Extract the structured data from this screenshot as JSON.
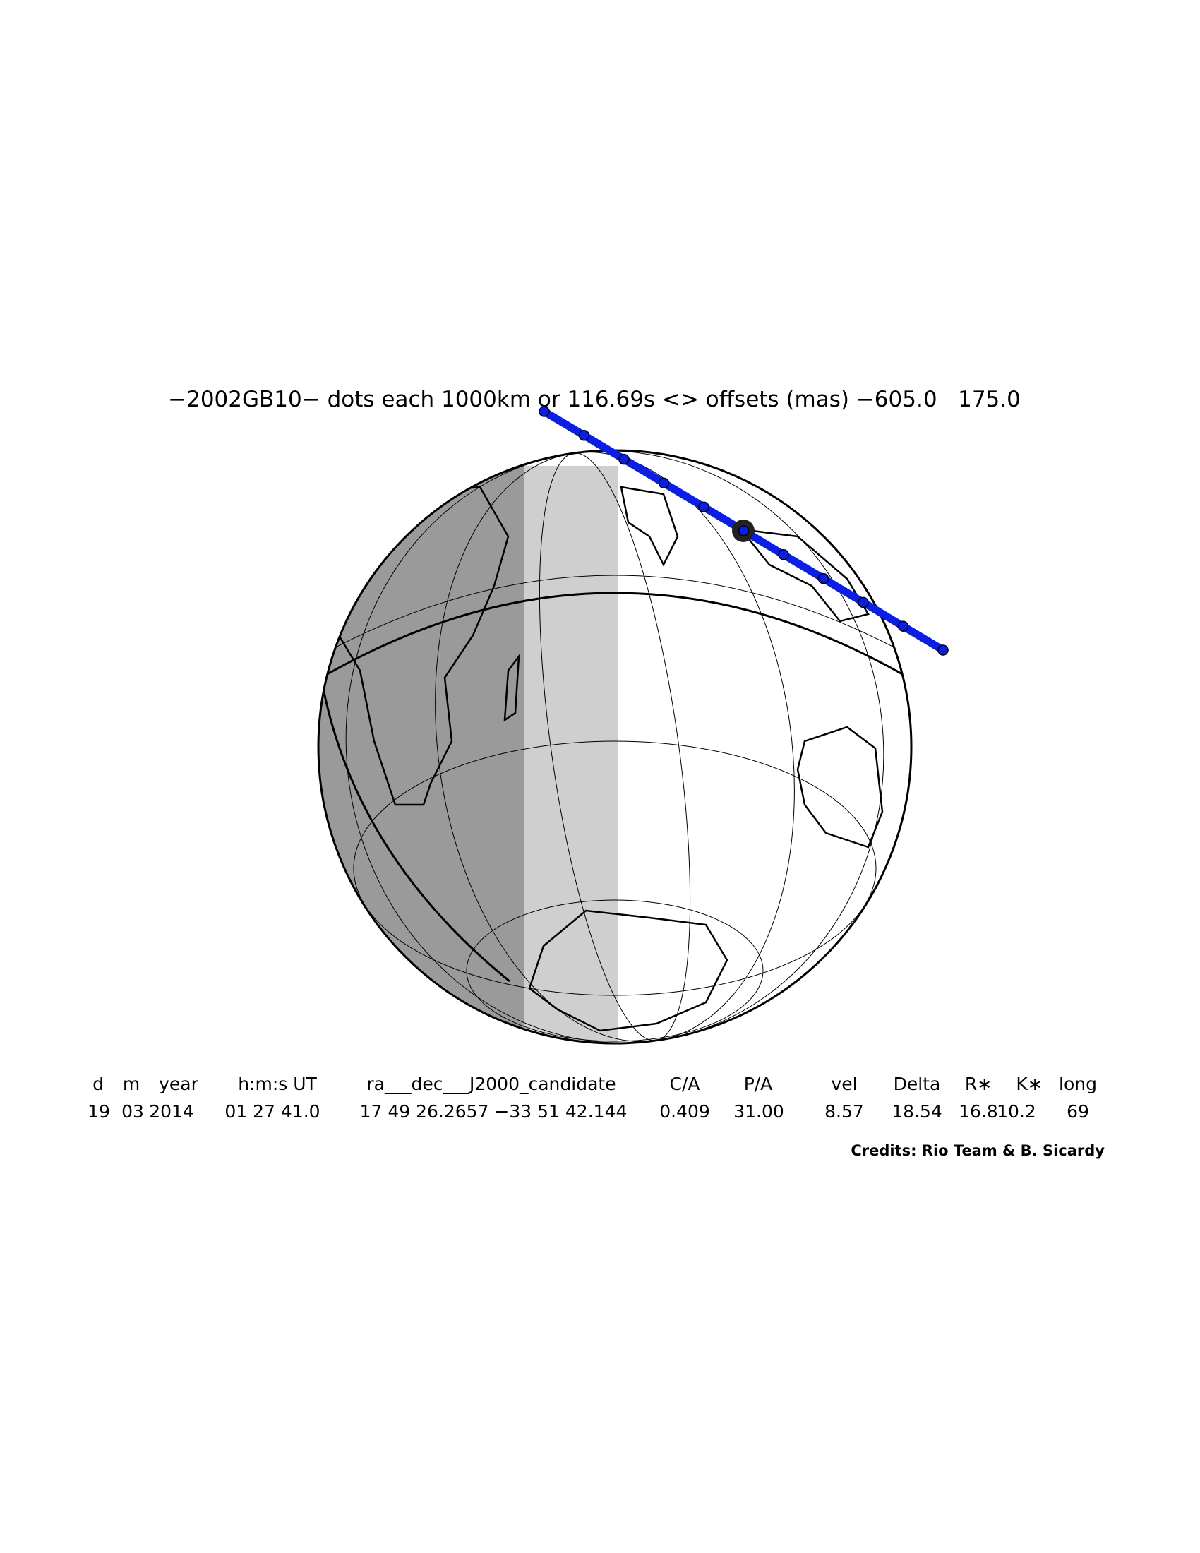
{
  "title": "−2002GB10− dots each 1000km or 116.69s <> offsets (mas) −605.0   175.0",
  "table": {
    "header": [
      "d",
      "m",
      "year",
      "h:m:s UT",
      "ra___dec___J2000_candidate",
      "C/A",
      "P/A",
      "vel",
      "Delta",
      "R∗",
      "K∗",
      "long"
    ],
    "rows": [
      [
        "19",
        "03",
        "2014",
        "01 27 41.0",
        "17 49 26.2657 −33 51 42.144",
        "0.409",
        "31.00",
        "8.57",
        "18.54",
        "16.8",
        "10.2",
        "69"
      ]
    ]
  },
  "credits": "Credits: Rio Team & B. Sicardy"
}
